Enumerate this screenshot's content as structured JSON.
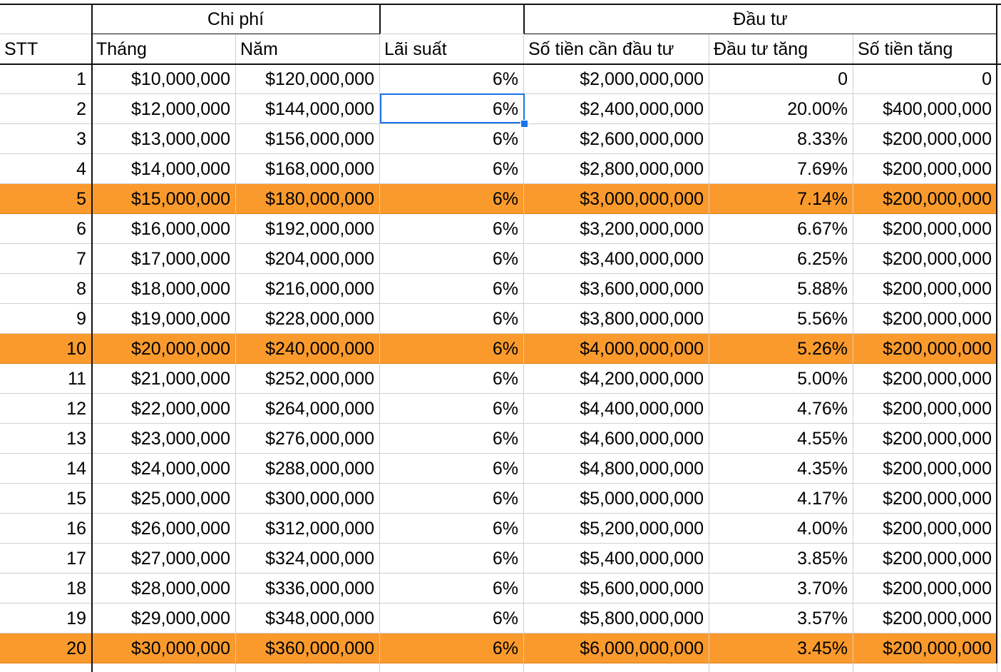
{
  "header_groups": {
    "chi_phi": "Chi phí",
    "dau_tu": "Đầu tư"
  },
  "columns": [
    "STT",
    "Tháng",
    "Năm",
    "Lãi suất",
    "Số tiền cần đầu tư",
    "Đầu tư tăng",
    "Số tiền tăng"
  ],
  "rows": [
    [
      "1",
      "$10,000,000",
      "$120,000,000",
      "6%",
      "$2,000,000,000",
      "0",
      "0"
    ],
    [
      "2",
      "$12,000,000",
      "$144,000,000",
      "6%",
      "$2,400,000,000",
      "20.00%",
      "$400,000,000"
    ],
    [
      "3",
      "$13,000,000",
      "$156,000,000",
      "6%",
      "$2,600,000,000",
      "8.33%",
      "$200,000,000"
    ],
    [
      "4",
      "$14,000,000",
      "$168,000,000",
      "6%",
      "$2,800,000,000",
      "7.69%",
      "$200,000,000"
    ],
    [
      "5",
      "$15,000,000",
      "$180,000,000",
      "6%",
      "$3,000,000,000",
      "7.14%",
      "$200,000,000"
    ],
    [
      "6",
      "$16,000,000",
      "$192,000,000",
      "6%",
      "$3,200,000,000",
      "6.67%",
      "$200,000,000"
    ],
    [
      "7",
      "$17,000,000",
      "$204,000,000",
      "6%",
      "$3,400,000,000",
      "6.25%",
      "$200,000,000"
    ],
    [
      "8",
      "$18,000,000",
      "$216,000,000",
      "6%",
      "$3,600,000,000",
      "5.88%",
      "$200,000,000"
    ],
    [
      "9",
      "$19,000,000",
      "$228,000,000",
      "6%",
      "$3,800,000,000",
      "5.56%",
      "$200,000,000"
    ],
    [
      "10",
      "$20,000,000",
      "$240,000,000",
      "6%",
      "$4,000,000,000",
      "5.26%",
      "$200,000,000"
    ],
    [
      "11",
      "$21,000,000",
      "$252,000,000",
      "6%",
      "$4,200,000,000",
      "5.00%",
      "$200,000,000"
    ],
    [
      "12",
      "$22,000,000",
      "$264,000,000",
      "6%",
      "$4,400,000,000",
      "4.76%",
      "$200,000,000"
    ],
    [
      "13",
      "$23,000,000",
      "$276,000,000",
      "6%",
      "$4,600,000,000",
      "4.55%",
      "$200,000,000"
    ],
    [
      "14",
      "$24,000,000",
      "$288,000,000",
      "6%",
      "$4,800,000,000",
      "4.35%",
      "$200,000,000"
    ],
    [
      "15",
      "$25,000,000",
      "$300,000,000",
      "6%",
      "$5,000,000,000",
      "4.17%",
      "$200,000,000"
    ],
    [
      "16",
      "$26,000,000",
      "$312,000,000",
      "6%",
      "$5,200,000,000",
      "4.00%",
      "$200,000,000"
    ],
    [
      "17",
      "$27,000,000",
      "$324,000,000",
      "6%",
      "$5,400,000,000",
      "3.85%",
      "$200,000,000"
    ],
    [
      "18",
      "$28,000,000",
      "$336,000,000",
      "6%",
      "$5,600,000,000",
      "3.70%",
      "$200,000,000"
    ],
    [
      "19",
      "$29,000,000",
      "$348,000,000",
      "6%",
      "$5,800,000,000",
      "3.57%",
      "$200,000,000"
    ],
    [
      "20",
      "$30,000,000",
      "$360,000,000",
      "6%",
      "$6,000,000,000",
      "3.45%",
      "$200,000,000"
    ]
  ],
  "highlighted_rows": [
    5,
    10,
    20
  ],
  "highlight_color": "#fb9a2c",
  "selected_cell": {
    "row": 2,
    "column": "Lãi suất"
  },
  "selection_color": "#1a73e8"
}
